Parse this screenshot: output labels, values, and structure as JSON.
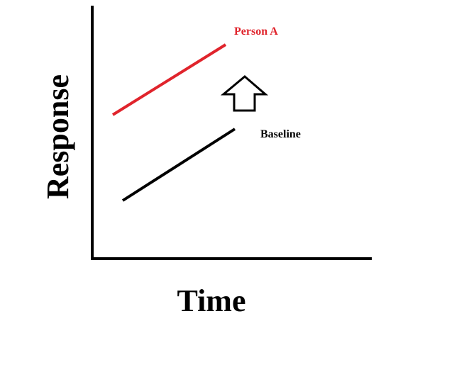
{
  "diagram": {
    "x_axis_title": "Time",
    "y_axis_title": "Response",
    "shift_indicator": "up-arrow-icon",
    "series": [
      {
        "name": "Person A",
        "color": "#e0242c",
        "trend": "increasing"
      },
      {
        "name": "Baseline",
        "color": "#000000",
        "trend": "increasing"
      }
    ]
  }
}
